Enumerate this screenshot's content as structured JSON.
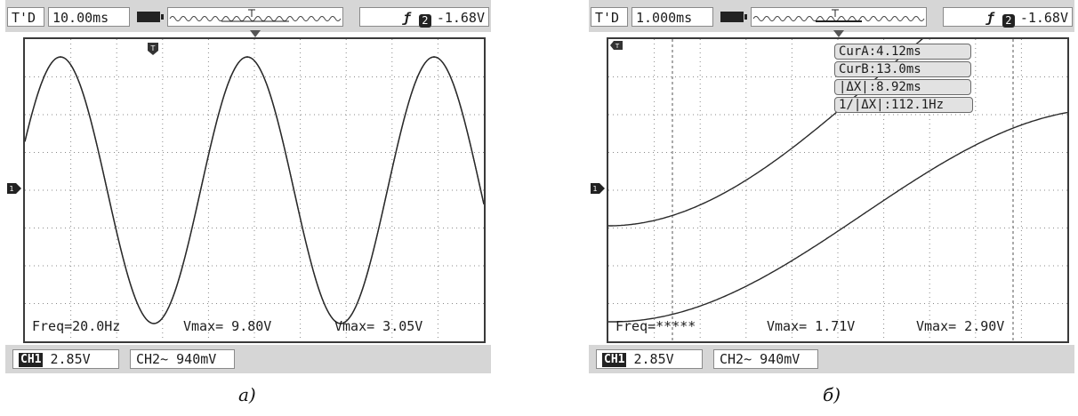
{
  "panels": [
    {
      "mode": "T'D",
      "timebase": "10.00ms",
      "trigger_value": "-1.68V",
      "trigger_source": "2",
      "freq": "Freq=20.0Hz",
      "vmax1": "Vmax= 9.80V",
      "vmax2": "Vmax= 3.05V",
      "ch1_tag": "CH1",
      "ch1_scale": "2.85V",
      "ch2_scale": "CH2~ 940mV",
      "caption": "a)"
    },
    {
      "mode": "T'D",
      "timebase": "1.000ms",
      "trigger_value": "-1.68V",
      "trigger_source": "2",
      "freq": "Freq=*****",
      "vmax1": "Vmax= 1.71V",
      "vmax2": "Vmax= 2.90V",
      "ch1_tag": "CH1",
      "ch1_scale": "2.85V",
      "ch2_scale": "CH2~ 940mV",
      "cursors": [
        "CurA:4.12ms",
        "CurB:13.0ms",
        "|ΔX|:8.92ms",
        "1/|ΔX|:112.1Hz"
      ],
      "caption": "б)"
    }
  ],
  "trigger_slope_icon": "rising-edge-slope-icon",
  "trigger_marker_label": "T",
  "ground_marker_label": "1",
  "colors": {
    "trace": "#2a2a2a",
    "bar_bg": "#d6d6d6",
    "grid": "#777777"
  }
}
